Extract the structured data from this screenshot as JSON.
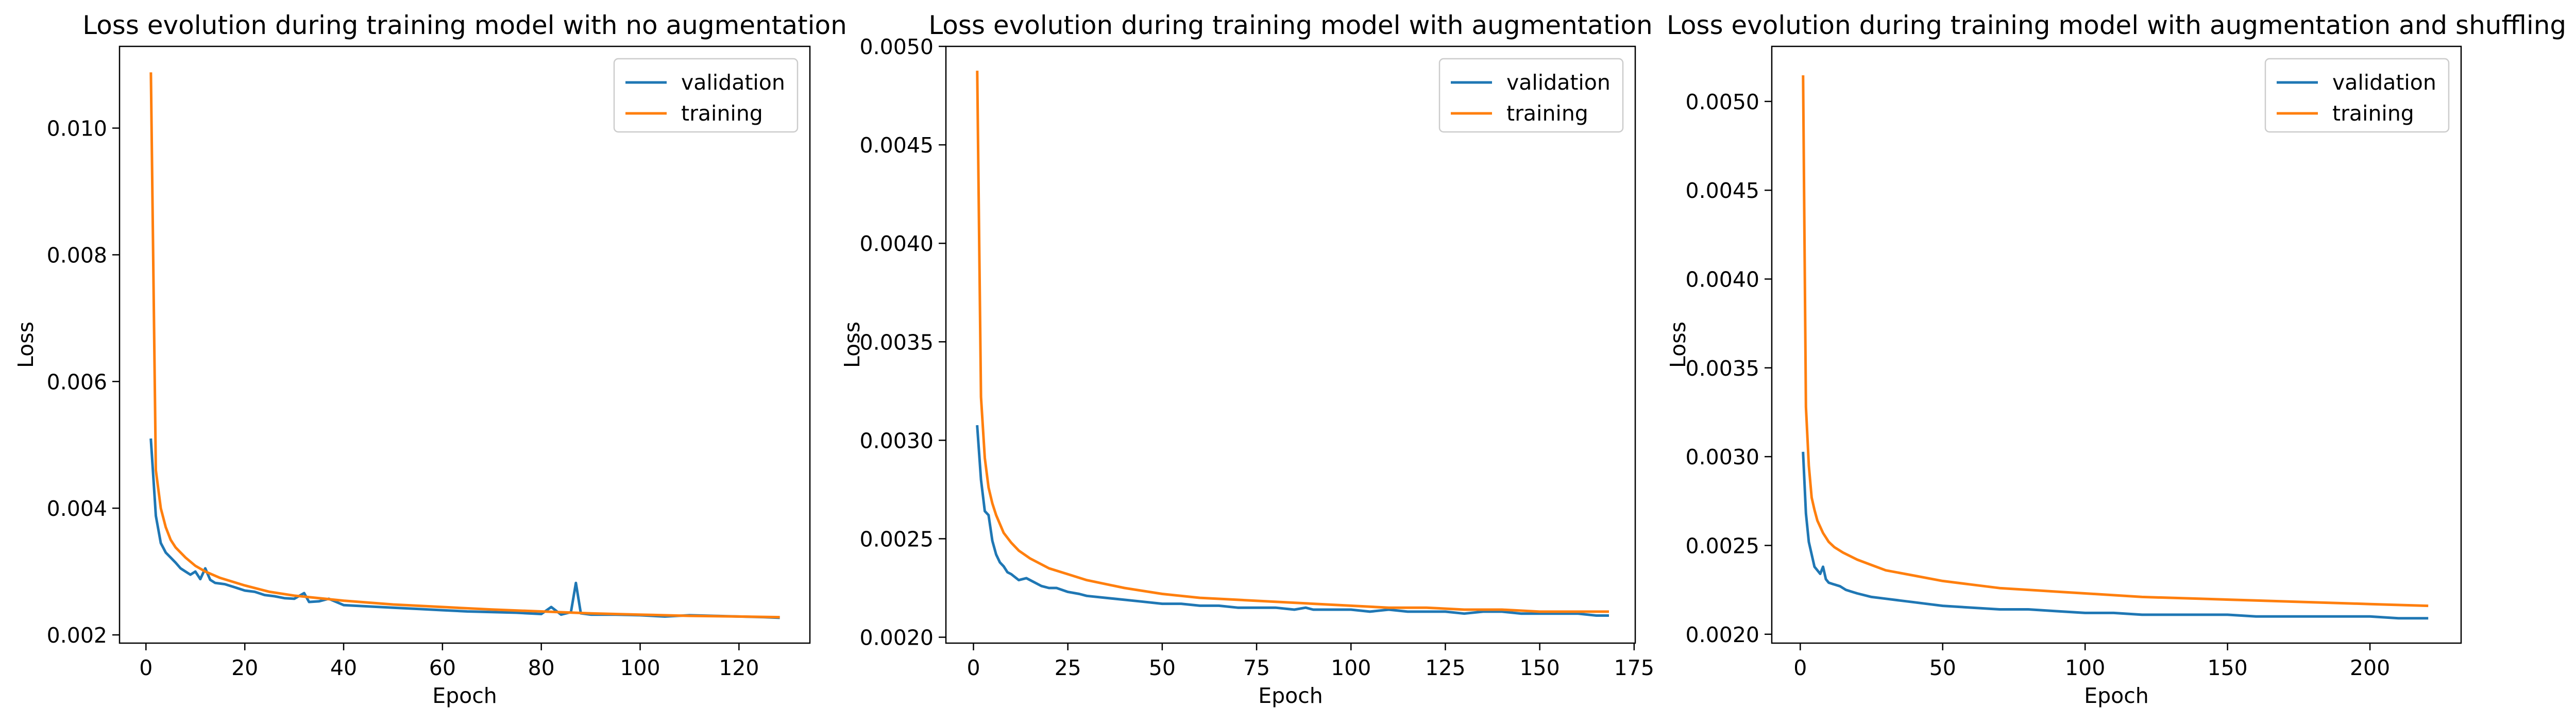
{
  "figure": {
    "colors": {
      "validation": "#1f77b4",
      "training": "#ff7f0e",
      "axes": "#000000",
      "legend_frame": "#cccccc"
    }
  },
  "chart_data": [
    {
      "type": "line",
      "title": "Loss evolution during training model with no augmentation",
      "xlabel": "Epoch",
      "ylabel": "Loss",
      "xlim": [
        -5.35,
        134.35
      ],
      "ylim": [
        0.00187,
        0.01129
      ],
      "xticks": [
        0,
        20,
        40,
        60,
        80,
        100,
        120
      ],
      "xtick_labels": [
        "0",
        "20",
        "40",
        "60",
        "80",
        "100",
        "120"
      ],
      "yticks": [
        0.002,
        0.004,
        0.006,
        0.008,
        0.01
      ],
      "ytick_labels": [
        "0.002",
        "0.004",
        "0.006",
        "0.008",
        "0.010"
      ],
      "grid": false,
      "legend": {
        "position": "top-right",
        "entries": [
          "validation",
          "training"
        ]
      },
      "series": [
        {
          "name": "validation",
          "color": "#1f77b4",
          "x": [
            1,
            2,
            3,
            4,
            5,
            6,
            7,
            8,
            9,
            10,
            11,
            12,
            13,
            14,
            15,
            16,
            18,
            20,
            22,
            24,
            26,
            28,
            30,
            32,
            33,
            35,
            37,
            40,
            45,
            50,
            55,
            60,
            65,
            70,
            75,
            80,
            82,
            84,
            86,
            87,
            88,
            90,
            95,
            100,
            105,
            110,
            115,
            120,
            125,
            128
          ],
          "y": [
            0.00508,
            0.00388,
            0.00345,
            0.0033,
            0.00322,
            0.00314,
            0.00305,
            0.003,
            0.00295,
            0.003,
            0.00288,
            0.00305,
            0.00287,
            0.00282,
            0.00281,
            0.0028,
            0.00275,
            0.0027,
            0.00268,
            0.00263,
            0.00261,
            0.00258,
            0.00257,
            0.00266,
            0.00252,
            0.00253,
            0.00257,
            0.00247,
            0.00245,
            0.00243,
            0.00241,
            0.00239,
            0.00237,
            0.00236,
            0.00235,
            0.00233,
            0.00244,
            0.00232,
            0.00236,
            0.00282,
            0.00234,
            0.00232,
            0.00232,
            0.00231,
            0.00229,
            0.00231,
            0.0023,
            0.00229,
            0.00228,
            0.00227
          ]
        },
        {
          "name": "training",
          "color": "#ff7f0e",
          "x": [
            1,
            2,
            3,
            4,
            5,
            6,
            8,
            10,
            12,
            15,
            20,
            25,
            30,
            40,
            50,
            60,
            70,
            80,
            90,
            100,
            110,
            120,
            128
          ],
          "y": [
            0.01086,
            0.0046,
            0.004,
            0.0037,
            0.0035,
            0.00338,
            0.00322,
            0.00309,
            0.003,
            0.0029,
            0.00278,
            0.00268,
            0.00262,
            0.00254,
            0.00248,
            0.00244,
            0.0024,
            0.00237,
            0.00234,
            0.00232,
            0.0023,
            0.00229,
            0.00228
          ]
        }
      ]
    },
    {
      "type": "line",
      "title": "Loss evolution during training model with augmentation",
      "xlabel": "Epoch",
      "ylabel": "Loss",
      "xlim": [
        -7.3,
        175.3
      ],
      "ylim": [
        0.00197,
        0.005
      ],
      "xticks": [
        0,
        25,
        50,
        75,
        100,
        125,
        150,
        175
      ],
      "xtick_labels": [
        "0",
        "25",
        "50",
        "75",
        "100",
        "125",
        "150",
        "175"
      ],
      "yticks": [
        0.002,
        0.0025,
        0.003,
        0.0035,
        0.004,
        0.0045,
        0.005
      ],
      "ytick_labels": [
        "0.0020",
        "0.0025",
        "0.0030",
        "0.0035",
        "0.0040",
        "0.0045",
        "0.0050"
      ],
      "grid": false,
      "legend": {
        "position": "top-right",
        "entries": [
          "validation",
          "training"
        ]
      },
      "series": [
        {
          "name": "validation",
          "color": "#1f77b4",
          "x": [
            1,
            2,
            3,
            4,
            5,
            6,
            7,
            8,
            9,
            10,
            12,
            14,
            16,
            18,
            20,
            22,
            25,
            28,
            30,
            35,
            40,
            45,
            50,
            55,
            60,
            65,
            70,
            75,
            80,
            85,
            88,
            90,
            95,
            100,
            105,
            110,
            115,
            120,
            125,
            130,
            135,
            140,
            145,
            150,
            155,
            160,
            165,
            168
          ],
          "y": [
            0.00307,
            0.0028,
            0.00264,
            0.00262,
            0.00249,
            0.00242,
            0.00238,
            0.00236,
            0.00233,
            0.00232,
            0.00229,
            0.0023,
            0.00228,
            0.00226,
            0.00225,
            0.00225,
            0.00223,
            0.00222,
            0.00221,
            0.0022,
            0.00219,
            0.00218,
            0.00217,
            0.00217,
            0.00216,
            0.00216,
            0.00215,
            0.00215,
            0.00215,
            0.00214,
            0.00215,
            0.00214,
            0.00214,
            0.00214,
            0.00213,
            0.00214,
            0.00213,
            0.00213,
            0.00213,
            0.00212,
            0.00213,
            0.00213,
            0.00212,
            0.00212,
            0.00212,
            0.00212,
            0.00211,
            0.00211
          ]
        },
        {
          "name": "training",
          "color": "#ff7f0e",
          "x": [
            1,
            2,
            3,
            4,
            5,
            6,
            8,
            10,
            12,
            15,
            20,
            25,
            30,
            40,
            50,
            60,
            70,
            80,
            90,
            100,
            110,
            120,
            130,
            140,
            150,
            160,
            168
          ],
          "y": [
            0.00487,
            0.00322,
            0.00291,
            0.00276,
            0.00268,
            0.00262,
            0.00253,
            0.00248,
            0.00244,
            0.0024,
            0.00235,
            0.00232,
            0.00229,
            0.00225,
            0.00222,
            0.0022,
            0.00219,
            0.00218,
            0.00217,
            0.00216,
            0.00215,
            0.00215,
            0.00214,
            0.00214,
            0.00213,
            0.00213,
            0.00213
          ]
        }
      ]
    },
    {
      "type": "line",
      "title": "Loss evolution during training model with augmentation and shuffling",
      "xlabel": "Epoch",
      "ylabel": "Loss",
      "xlim": [
        -10,
        232
      ],
      "ylim": [
        0.00195,
        0.00531
      ],
      "xticks": [
        0,
        50,
        100,
        150,
        200
      ],
      "xtick_labels": [
        "0",
        "50",
        "100",
        "150",
        "200"
      ],
      "yticks": [
        0.002,
        0.0025,
        0.003,
        0.0035,
        0.004,
        0.0045,
        0.005
      ],
      "ytick_labels": [
        "0.0020",
        "0.0025",
        "0.0030",
        "0.0035",
        "0.0040",
        "0.0045",
        "0.0050"
      ],
      "grid": false,
      "legend": {
        "position": "top-right",
        "entries": [
          "validation",
          "training"
        ]
      },
      "series": [
        {
          "name": "validation",
          "color": "#1f77b4",
          "x": [
            1,
            2,
            3,
            4,
            5,
            6,
            7,
            8,
            9,
            10,
            12,
            14,
            16,
            18,
            20,
            25,
            30,
            35,
            40,
            45,
            50,
            60,
            70,
            80,
            90,
            100,
            110,
            120,
            130,
            140,
            150,
            160,
            170,
            180,
            190,
            200,
            210,
            220
          ],
          "y": [
            0.00302,
            0.00268,
            0.00252,
            0.00245,
            0.00238,
            0.00236,
            0.00234,
            0.00238,
            0.00231,
            0.00229,
            0.00228,
            0.00227,
            0.00225,
            0.00224,
            0.00223,
            0.00221,
            0.0022,
            0.00219,
            0.00218,
            0.00217,
            0.00216,
            0.00215,
            0.00214,
            0.00214,
            0.00213,
            0.00212,
            0.00212,
            0.00211,
            0.00211,
            0.00211,
            0.00211,
            0.0021,
            0.0021,
            0.0021,
            0.0021,
            0.0021,
            0.00209,
            0.00209
          ]
        },
        {
          "name": "training",
          "color": "#ff7f0e",
          "x": [
            1,
            2,
            3,
            4,
            5,
            6,
            8,
            10,
            12,
            15,
            20,
            25,
            30,
            40,
            50,
            60,
            70,
            80,
            90,
            100,
            120,
            140,
            160,
            180,
            200,
            220
          ],
          "y": [
            0.00514,
            0.00328,
            0.00295,
            0.00277,
            0.0027,
            0.00264,
            0.00257,
            0.00252,
            0.00249,
            0.00246,
            0.00242,
            0.00239,
            0.00236,
            0.00233,
            0.0023,
            0.00228,
            0.00226,
            0.00225,
            0.00224,
            0.00223,
            0.00221,
            0.0022,
            0.00219,
            0.00218,
            0.00217,
            0.00216
          ]
        }
      ]
    }
  ]
}
